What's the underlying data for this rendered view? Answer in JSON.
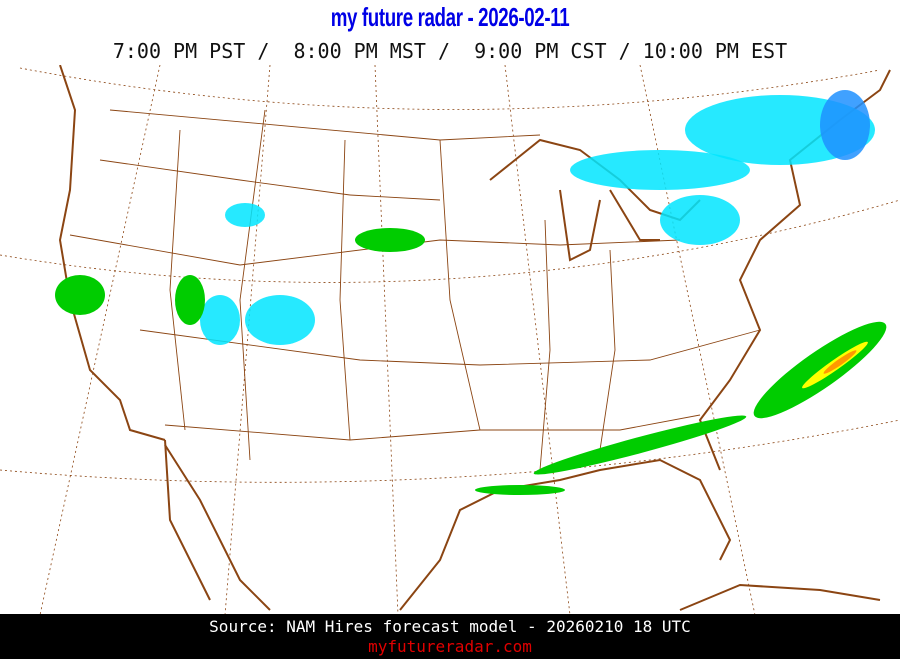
{
  "header": {
    "title": "my future radar - 2026-02-11",
    "time_zones": "7:00 PM PST /  8:00 PM MST /  9:00 PM CST / 10:00 PM EST"
  },
  "map": {
    "region": "Continental United States",
    "colors": {
      "borders": "#8b4513",
      "graticule": "#8b4513",
      "rain_light": "#00cc00",
      "rain_moderate": "#ffff00",
      "rain_heavy": "#ff9900",
      "snow_light": "#00e5ff",
      "snow_heavy": "#1e90ff"
    }
  },
  "footer": {
    "source": "Source: NAM Hires forecast model - 20260210 18 UTC",
    "site": "myfutureradar.com"
  }
}
